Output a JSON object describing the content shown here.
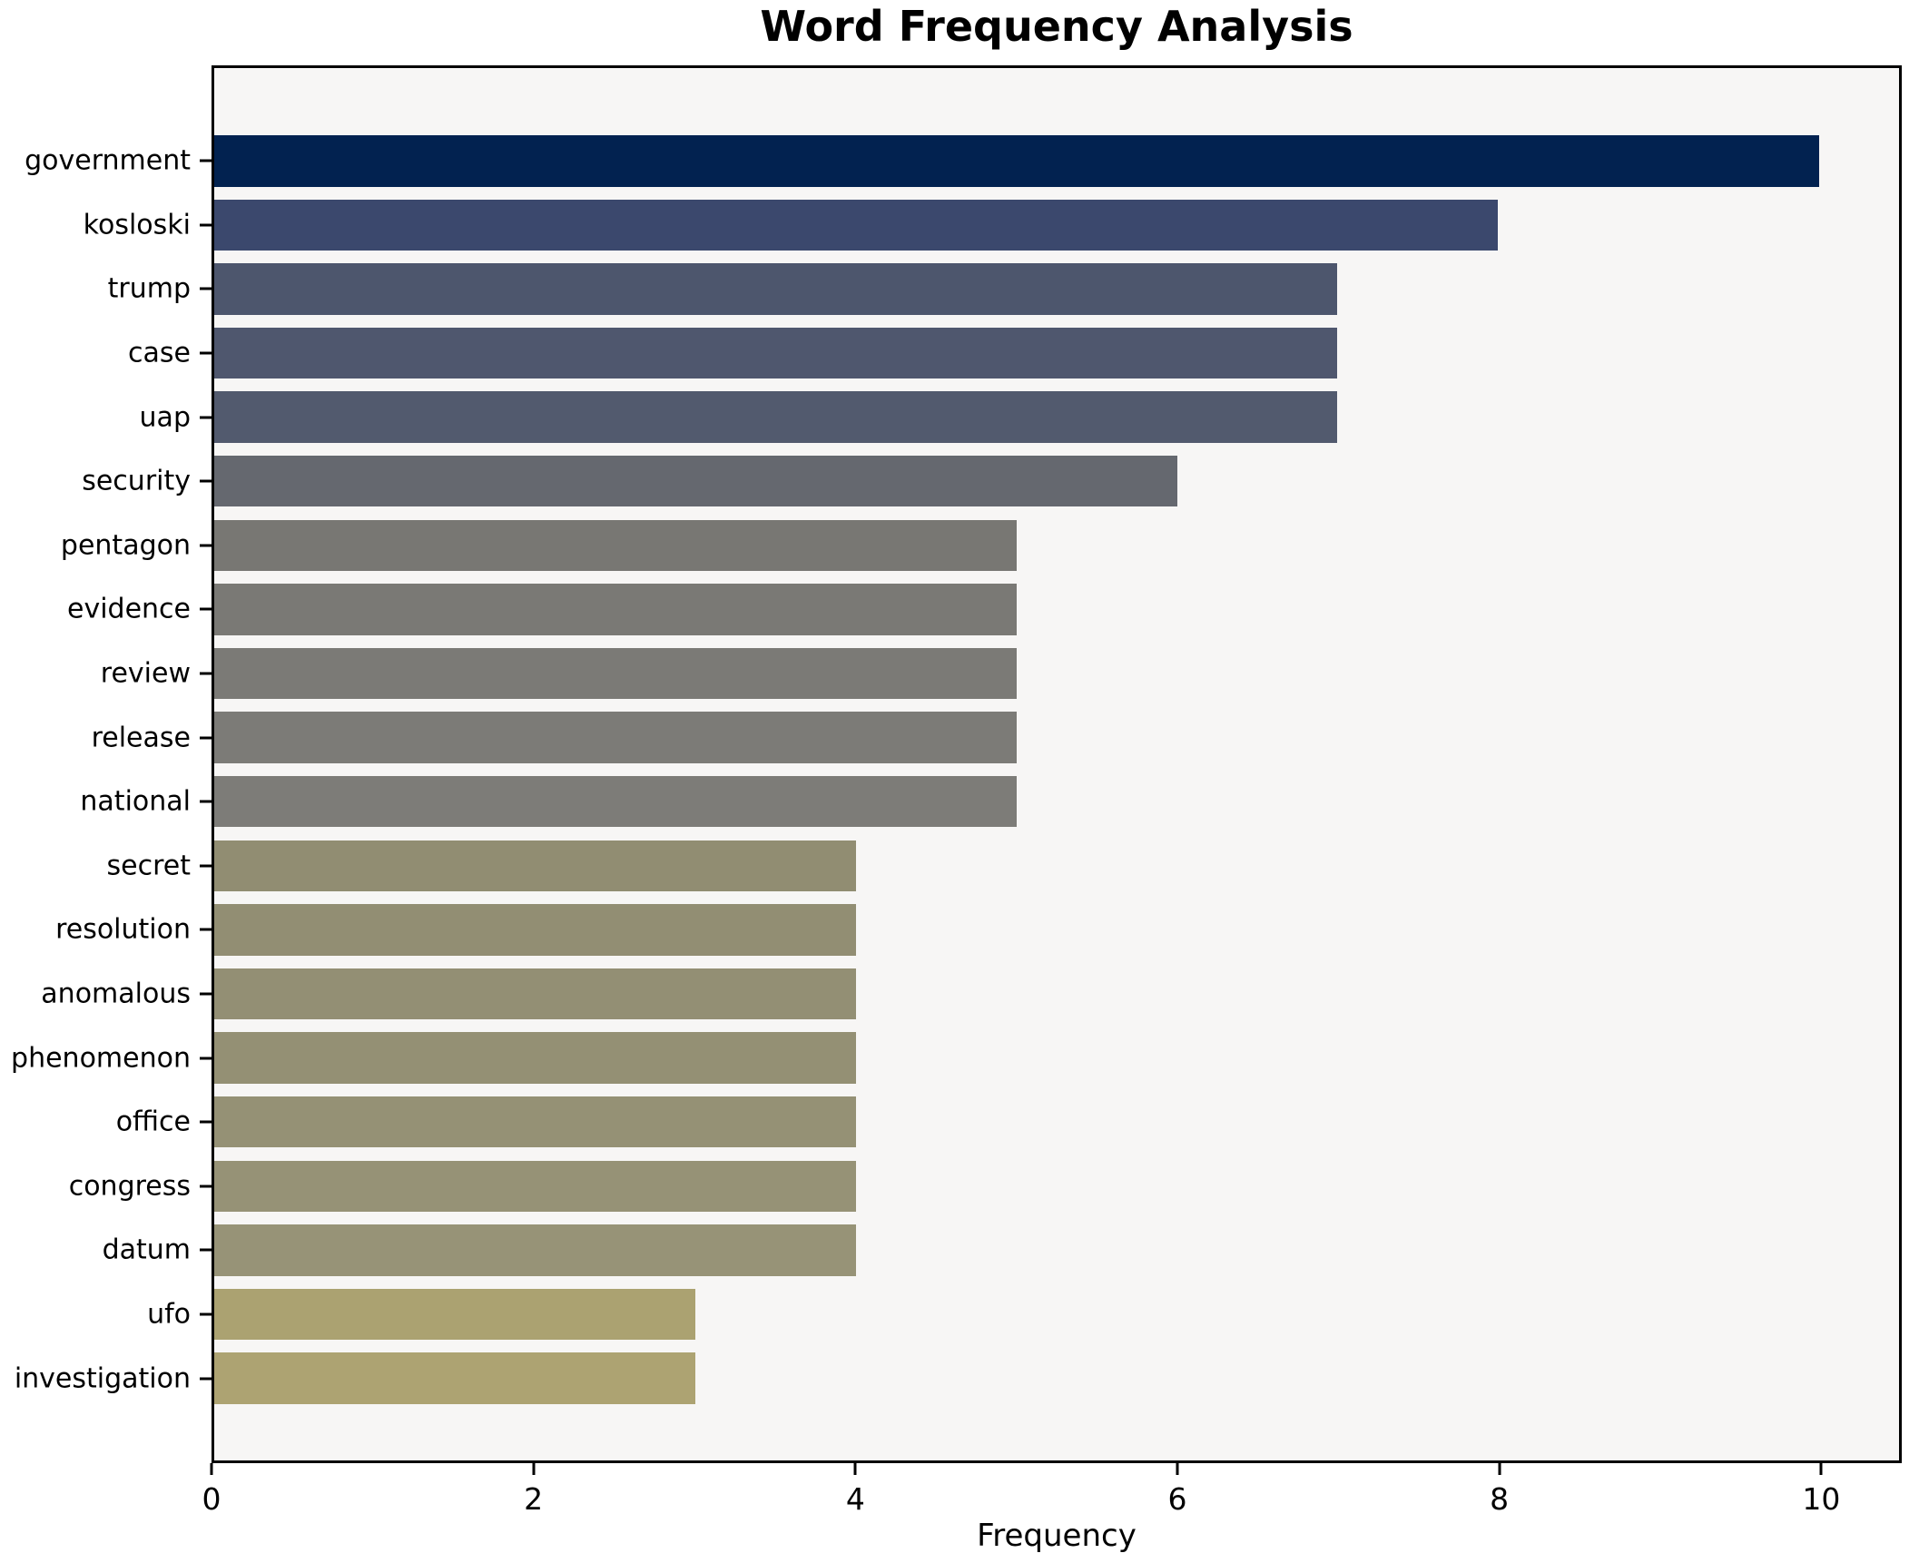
{
  "chart_data": {
    "type": "bar",
    "orientation": "horizontal",
    "title": "Word Frequency Analysis",
    "xlabel": "Frequency",
    "ylabel": "",
    "xlim": [
      0,
      10.5
    ],
    "x_ticks": [
      0,
      2,
      4,
      6,
      8,
      10
    ],
    "grid": false,
    "legend": null,
    "background_color": "#f7f6f5",
    "spine_color": "#000000",
    "text_color": "#000000",
    "categories": [
      "government",
      "kosloski",
      "trump",
      "case",
      "uap",
      "security",
      "pentagon",
      "evidence",
      "review",
      "release",
      "national",
      "secret",
      "resolution",
      "anomalous",
      "phenomenon",
      "office",
      "congress",
      "datum",
      "ufo",
      "investigation"
    ],
    "values": [
      10,
      8,
      7,
      7,
      7,
      6,
      5,
      5,
      5,
      5,
      5,
      4,
      4,
      4,
      4,
      4,
      4,
      4,
      3,
      3
    ],
    "colors": [
      "#022250",
      "#3b486d",
      "#4d566d",
      "#4f576e",
      "#525a6e",
      "#65686f",
      "#787773",
      "#7a7975",
      "#7b7a76",
      "#7c7b77",
      "#7d7c78",
      "#918d72",
      "#928e73",
      "#938f74",
      "#949074",
      "#959175",
      "#969276",
      "#979377",
      "#aba271",
      "#ada372"
    ]
  }
}
